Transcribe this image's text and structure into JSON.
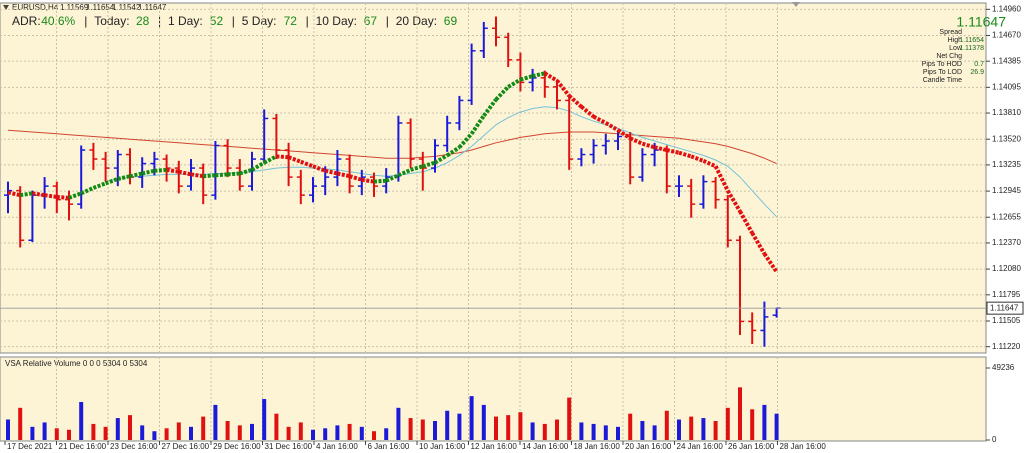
{
  "chart_data": {
    "type": "ohlc",
    "symbol": "EURUSD,H4",
    "quote": [
      "1.11569",
      "1.11654",
      "1.11542",
      "1.11647"
    ],
    "adr": [
      {
        "label": "ADR:",
        "value": "40.6%"
      },
      {
        "label": "Today:",
        "value": "28"
      },
      {
        "label": "1 Day:",
        "value": "52"
      },
      {
        "label": "5 Day:",
        "value": "72"
      },
      {
        "label": "10 Day:",
        "value": "67"
      },
      {
        "label": "20 Day:",
        "value": "69"
      }
    ],
    "info": [
      {
        "label": "Spread",
        "value": null
      },
      {
        "label": "High",
        "value": "1.11654"
      },
      {
        "label": "Low",
        "value": "1.11378"
      },
      {
        "label": "Net Chg",
        "value": null
      },
      {
        "label": "Pips To HOD",
        "value": "0.7"
      },
      {
        "label": "Pips To LOD",
        "value": "26.9"
      },
      {
        "label": "Candle Time",
        "value": null
      }
    ],
    "price_tag": 1.11647,
    "ylim": [
      1.1115,
      1.1503
    ],
    "yticks": [
      {
        "value": 1.1496,
        "label": "1.14960"
      },
      {
        "value": 1.1467,
        "label": "1.14670"
      },
      1.14385,
      1.14095,
      {
        "value": 1.1381,
        "label": "1.13810"
      },
      {
        "value": 1.1352,
        "label": "1.13520"
      },
      1.13235,
      1.12945,
      1.12655,
      {
        "value": 1.1237,
        "label": "1.12370"
      },
      {
        "value": 1.1208,
        "label": "1.12080"
      },
      1.11795,
      1.11505,
      {
        "value": 1.1122,
        "label": "1.11220"
      }
    ],
    "xticks": [
      "17 Dec 2021",
      "21 Dec 16:00",
      "23 Dec 16:00",
      "27 Dec 16:00",
      "29 Dec 16:00",
      "31 Dec 16:00",
      "4 Jan 16:00",
      "6 Jan 16:00",
      "10 Jan 16:00",
      "12 Jan 16:00",
      "14 Jan 16:00",
      "18 Jan 16:00",
      "20 Jan 16:00",
      "24 Jan 16:00",
      "26 Jan 16:00",
      "28 Jan 16:00"
    ],
    "grid": true,
    "up_color": "#1a1ad8",
    "down_color": "#e01010",
    "ohlc": [
      [
        1.129,
        1.1305,
        1.127,
        1.1295
      ],
      [
        1.1295,
        1.13,
        1.1232,
        1.124
      ],
      [
        1.124,
        1.1295,
        1.1238,
        1.129
      ],
      [
        1.129,
        1.131,
        1.1275,
        1.13
      ],
      [
        1.13,
        1.1305,
        1.127,
        1.1285
      ],
      [
        1.1285,
        1.1295,
        1.1262,
        1.128
      ],
      [
        1.128,
        1.1345,
        1.1275,
        1.134
      ],
      [
        1.134,
        1.1348,
        1.1318,
        1.133
      ],
      [
        1.133,
        1.1338,
        1.1305,
        1.132
      ],
      [
        1.132,
        1.134,
        1.13,
        1.1335
      ],
      [
        1.1335,
        1.1342,
        1.1302,
        1.131
      ],
      [
        1.131,
        1.1332,
        1.1298,
        1.1325
      ],
      [
        1.1325,
        1.1338,
        1.1312,
        1.133
      ],
      [
        1.133,
        1.1335,
        1.1305,
        1.132
      ],
      [
        1.132,
        1.1328,
        1.1292,
        1.13
      ],
      [
        1.13,
        1.133,
        1.1295,
        1.132
      ],
      [
        1.132,
        1.1325,
        1.128,
        1.129
      ],
      [
        1.129,
        1.135,
        1.1285,
        1.1345
      ],
      [
        1.1345,
        1.1352,
        1.131,
        1.132
      ],
      [
        1.132,
        1.133,
        1.1295,
        1.13
      ],
      [
        1.13,
        1.1338,
        1.1295,
        1.133
      ],
      [
        1.133,
        1.1385,
        1.1325,
        1.1375
      ],
      [
        1.1375,
        1.138,
        1.133,
        1.134
      ],
      [
        1.134,
        1.1348,
        1.13,
        1.131
      ],
      [
        1.131,
        1.1318,
        1.128,
        1.129
      ],
      [
        1.129,
        1.131,
        1.1282,
        1.13
      ],
      [
        1.13,
        1.1322,
        1.129,
        1.131
      ],
      [
        1.131,
        1.134,
        1.13,
        1.133
      ],
      [
        1.133,
        1.1335,
        1.1292,
        1.13
      ],
      [
        1.13,
        1.1318,
        1.129,
        1.131
      ],
      [
        1.131,
        1.1315,
        1.1288,
        1.13
      ],
      [
        1.13,
        1.132,
        1.1292,
        1.131
      ],
      [
        1.131,
        1.1378,
        1.1305,
        1.137
      ],
      [
        1.137,
        1.1375,
        1.132,
        1.133
      ],
      [
        1.133,
        1.1338,
        1.1295,
        1.132
      ],
      [
        1.132,
        1.1352,
        1.1315,
        1.1345
      ],
      [
        1.1345,
        1.1378,
        1.1338,
        1.137
      ],
      [
        1.137,
        1.14,
        1.1362,
        1.1395
      ],
      [
        1.1395,
        1.1458,
        1.139,
        1.145
      ],
      [
        1.145,
        1.1482,
        1.1442,
        1.1475
      ],
      [
        1.1475,
        1.1488,
        1.1455,
        1.1465
      ],
      [
        1.1465,
        1.147,
        1.1432,
        1.144
      ],
      [
        1.144,
        1.1448,
        1.1405,
        1.1415
      ],
      [
        1.1415,
        1.143,
        1.1405,
        1.142
      ],
      [
        1.142,
        1.1428,
        1.1398,
        1.141
      ],
      [
        1.141,
        1.1418,
        1.1385,
        1.1395
      ],
      [
        1.1395,
        1.14,
        1.1318,
        1.133
      ],
      [
        1.133,
        1.1342,
        1.1322,
        1.1335
      ],
      [
        1.1335,
        1.1352,
        1.1325,
        1.1345
      ],
      [
        1.1345,
        1.1358,
        1.1335,
        1.135
      ],
      [
        1.135,
        1.1362,
        1.134,
        1.1355
      ],
      [
        1.1355,
        1.136,
        1.1302,
        1.131
      ],
      [
        1.131,
        1.1342,
        1.1305,
        1.1335
      ],
      [
        1.1335,
        1.1348,
        1.1322,
        1.134
      ],
      [
        1.134,
        1.1345,
        1.1292,
        1.13
      ],
      [
        1.13,
        1.1312,
        1.1288,
        1.13
      ],
      [
        1.13,
        1.1308,
        1.1265,
        1.128
      ],
      [
        1.128,
        1.1312,
        1.1275,
        1.1305
      ],
      [
        1.1305,
        1.131,
        1.1275,
        1.1285
      ],
      [
        1.1285,
        1.129,
        1.1232,
        1.124
      ],
      [
        1.124,
        1.1245,
        1.1135,
        1.115
      ],
      [
        1.115,
        1.116,
        1.1125,
        1.114
      ],
      [
        1.114,
        1.1172,
        1.1122,
        1.1155
      ],
      [
        1.11569,
        1.11654,
        1.11542,
        1.11647
      ]
    ],
    "ma_fast": {
      "up_color": "#138a13",
      "down_color": "#e01010",
      "values": [
        1.1293,
        1.129,
        1.1292,
        1.129,
        1.1288,
        1.1287,
        1.1292,
        1.1298,
        1.1303,
        1.1308,
        1.1311,
        1.1314,
        1.1317,
        1.1318,
        1.1316,
        1.1313,
        1.1311,
        1.1312,
        1.1313,
        1.1314,
        1.1318,
        1.1326,
        1.1333,
        1.1332,
        1.1327,
        1.1322,
        1.1317,
        1.1314,
        1.1311,
        1.1307,
        1.1305,
        1.1306,
        1.1312,
        1.1318,
        1.1322,
        1.1326,
        1.1334,
        1.1343,
        1.1358,
        1.1378,
        1.1396,
        1.141,
        1.1418,
        1.1422,
        1.1425,
        1.1417,
        1.14,
        1.1388,
        1.1377,
        1.137,
        1.1362,
        1.1353,
        1.1347,
        1.1343,
        1.134,
        1.1337,
        1.1333,
        1.1328,
        1.1322,
        1.1295,
        1.1272,
        1.1248,
        1.1225,
        1.1205
      ]
    },
    "ma_mid": {
      "color": "#72c2d6",
      "values": [
        null,
        null,
        null,
        null,
        null,
        null,
        null,
        null,
        1.1305,
        1.1308,
        1.131,
        1.1311,
        1.1312,
        1.1313,
        1.1313,
        1.1313,
        1.1313,
        1.1314,
        1.1314,
        1.1315,
        1.1316,
        1.1318,
        1.132,
        1.1321,
        1.1321,
        1.132,
        1.1319,
        1.1318,
        1.1316,
        1.1314,
        1.1312,
        1.1311,
        1.1312,
        1.1314,
        1.1316,
        1.132,
        1.1326,
        1.1334,
        1.1344,
        1.1356,
        1.1368,
        1.1376,
        1.1382,
        1.1386,
        1.1388,
        1.1387,
        1.1383,
        1.1377,
        1.1372,
        1.1368,
        1.1364,
        1.1359,
        1.1354,
        1.135,
        1.1346,
        1.1342,
        1.1338,
        1.1334,
        1.1329,
        1.1322,
        1.131,
        1.1295,
        1.128,
        1.1266
      ]
    },
    "ma_slow": {
      "color": "#d0452f",
      "values": [
        1.1362,
        1.1361,
        1.136,
        1.1359,
        1.1358,
        1.1357,
        1.1356,
        1.1355,
        1.1354,
        1.1353,
        1.1352,
        1.1351,
        1.135,
        1.1349,
        1.1348,
        1.1347,
        1.1346,
        1.1345,
        1.1344,
        1.1343,
        1.1342,
        1.1341,
        1.134,
        1.1339,
        1.1338,
        1.1337,
        1.1336,
        1.1335,
        1.1334,
        1.1333,
        1.1332,
        1.1331,
        1.1331,
        1.1331,
        1.1332,
        1.1333,
        1.1335,
        1.1337,
        1.134,
        1.1344,
        1.1348,
        1.1351,
        1.1354,
        1.1356,
        1.1358,
        1.1359,
        1.136,
        1.136,
        1.136,
        1.1359,
        1.1358,
        1.1357,
        1.1356,
        1.1355,
        1.1354,
        1.1353,
        1.1351,
        1.1349,
        1.1347,
        1.1344,
        1.134,
        1.1336,
        1.1331,
        1.1325
      ]
    },
    "volume": {
      "title": "VSA Relative Volume 0 0 0 5304 0 5304",
      "ylim": [
        0,
        49236
      ],
      "yticks": [
        49236,
        0
      ],
      "values": [
        14000,
        22000,
        9000,
        12000,
        8000,
        7000,
        26000,
        11000,
        9000,
        15000,
        17000,
        10000,
        6000,
        8000,
        12000,
        9000,
        16000,
        24000,
        13000,
        10000,
        11000,
        28000,
        18000,
        9000,
        12000,
        7000,
        8000,
        10000,
        11000,
        9000,
        6000,
        8000,
        22000,
        15000,
        14000,
        13000,
        20000,
        18000,
        30000,
        24000,
        16000,
        17000,
        19000,
        12000,
        11000,
        14000,
        29000,
        12000,
        11000,
        10000,
        9000,
        18000,
        13000,
        10000,
        20000,
        14000,
        16000,
        15000,
        13000,
        22000,
        36000,
        21000,
        24000,
        18000
      ]
    }
  }
}
